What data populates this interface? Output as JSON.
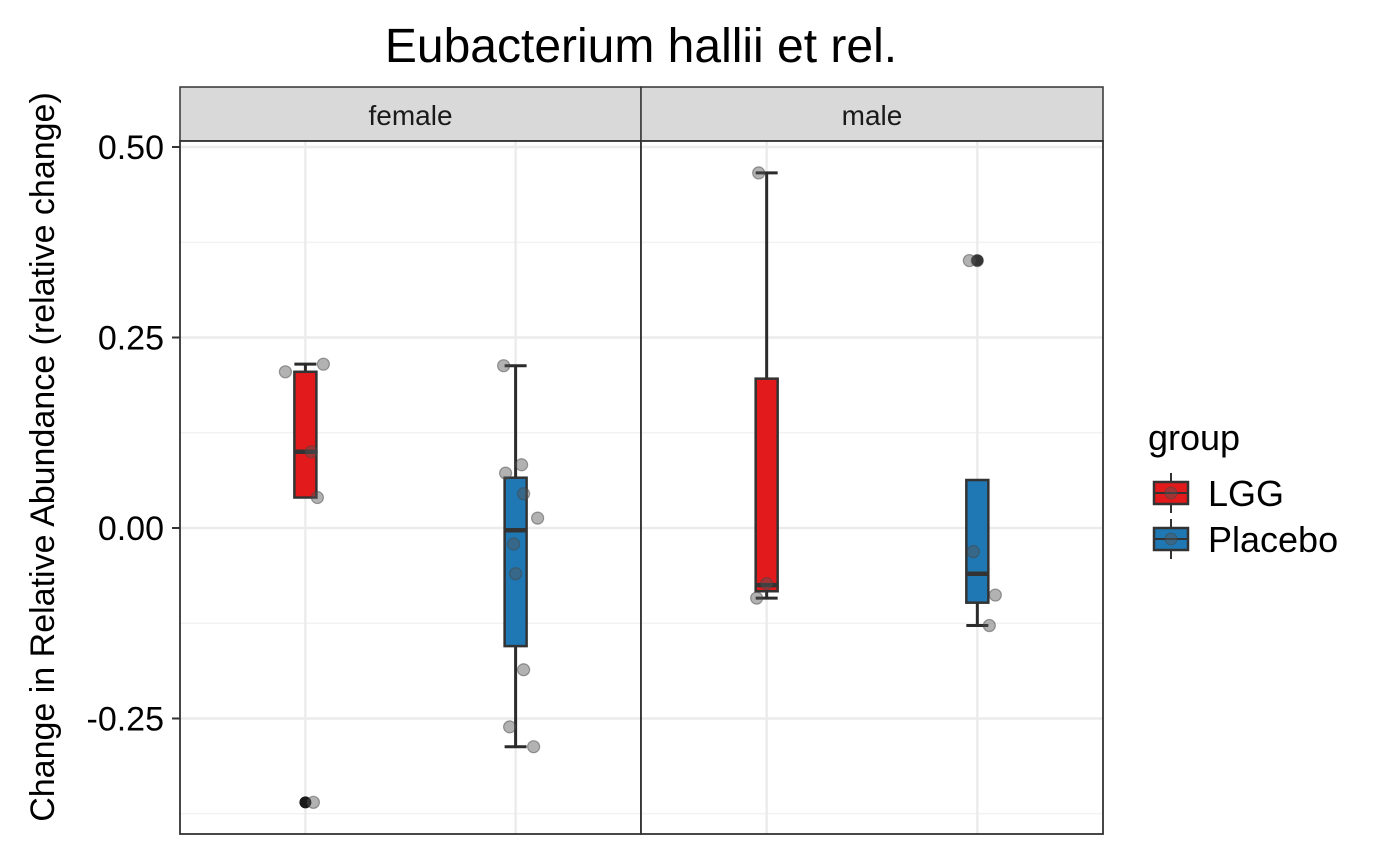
{
  "chart_data": {
    "type": "boxplot",
    "title": "Eubacterium hallii et rel.",
    "ylabel": "Change in Relative Abundance (relative change)",
    "xlabel": "",
    "ylim": [
      -0.4,
      0.58
    ],
    "y_ticks": [
      0.5,
      0.25,
      0.0,
      -0.25
    ],
    "y_tick_labels": [
      "0.50",
      "0.25",
      "0.00",
      "-0.25"
    ],
    "grid": true,
    "legend": {
      "title": "group",
      "placement": "right",
      "entries": [
        {
          "name": "LGG",
          "color": "#e31a1c"
        },
        {
          "name": "Placebo",
          "color": "#1f78b4"
        }
      ]
    },
    "panels": [
      {
        "strip": "female",
        "boxes": [
          {
            "group": "LGG",
            "whisker_low": null,
            "q1": 0.04,
            "median": 0.1,
            "q3": 0.205,
            "whisker_high": 0.215,
            "outliers": [
              -0.36
            ],
            "points": [
              0.205,
              0.1,
              0.04,
              0.215,
              -0.36
            ]
          },
          {
            "group": "Placebo",
            "whisker_low": -0.287,
            "q1": -0.155,
            "median": -0.003,
            "q3": 0.066,
            "whisker_high": 0.213,
            "outliers": [],
            "points": [
              0.213,
              0.083,
              0.072,
              0.045,
              0.013,
              -0.021,
              -0.06,
              -0.186,
              -0.261,
              -0.287
            ]
          }
        ]
      },
      {
        "strip": "male",
        "boxes": [
          {
            "group": "LGG",
            "whisker_low": -0.092,
            "q1": -0.083,
            "median": -0.075,
            "q3": 0.196,
            "whisker_high": 0.466,
            "outliers": [],
            "points": [
              0.466,
              -0.073,
              -0.092
            ]
          },
          {
            "group": "Placebo",
            "whisker_low": -0.128,
            "q1": -0.098,
            "median": -0.06,
            "q3": 0.063,
            "whisker_high": null,
            "outliers": [
              0.351
            ],
            "points": [
              0.351,
              0.351,
              -0.031,
              -0.088,
              -0.128
            ]
          }
        ]
      }
    ]
  }
}
